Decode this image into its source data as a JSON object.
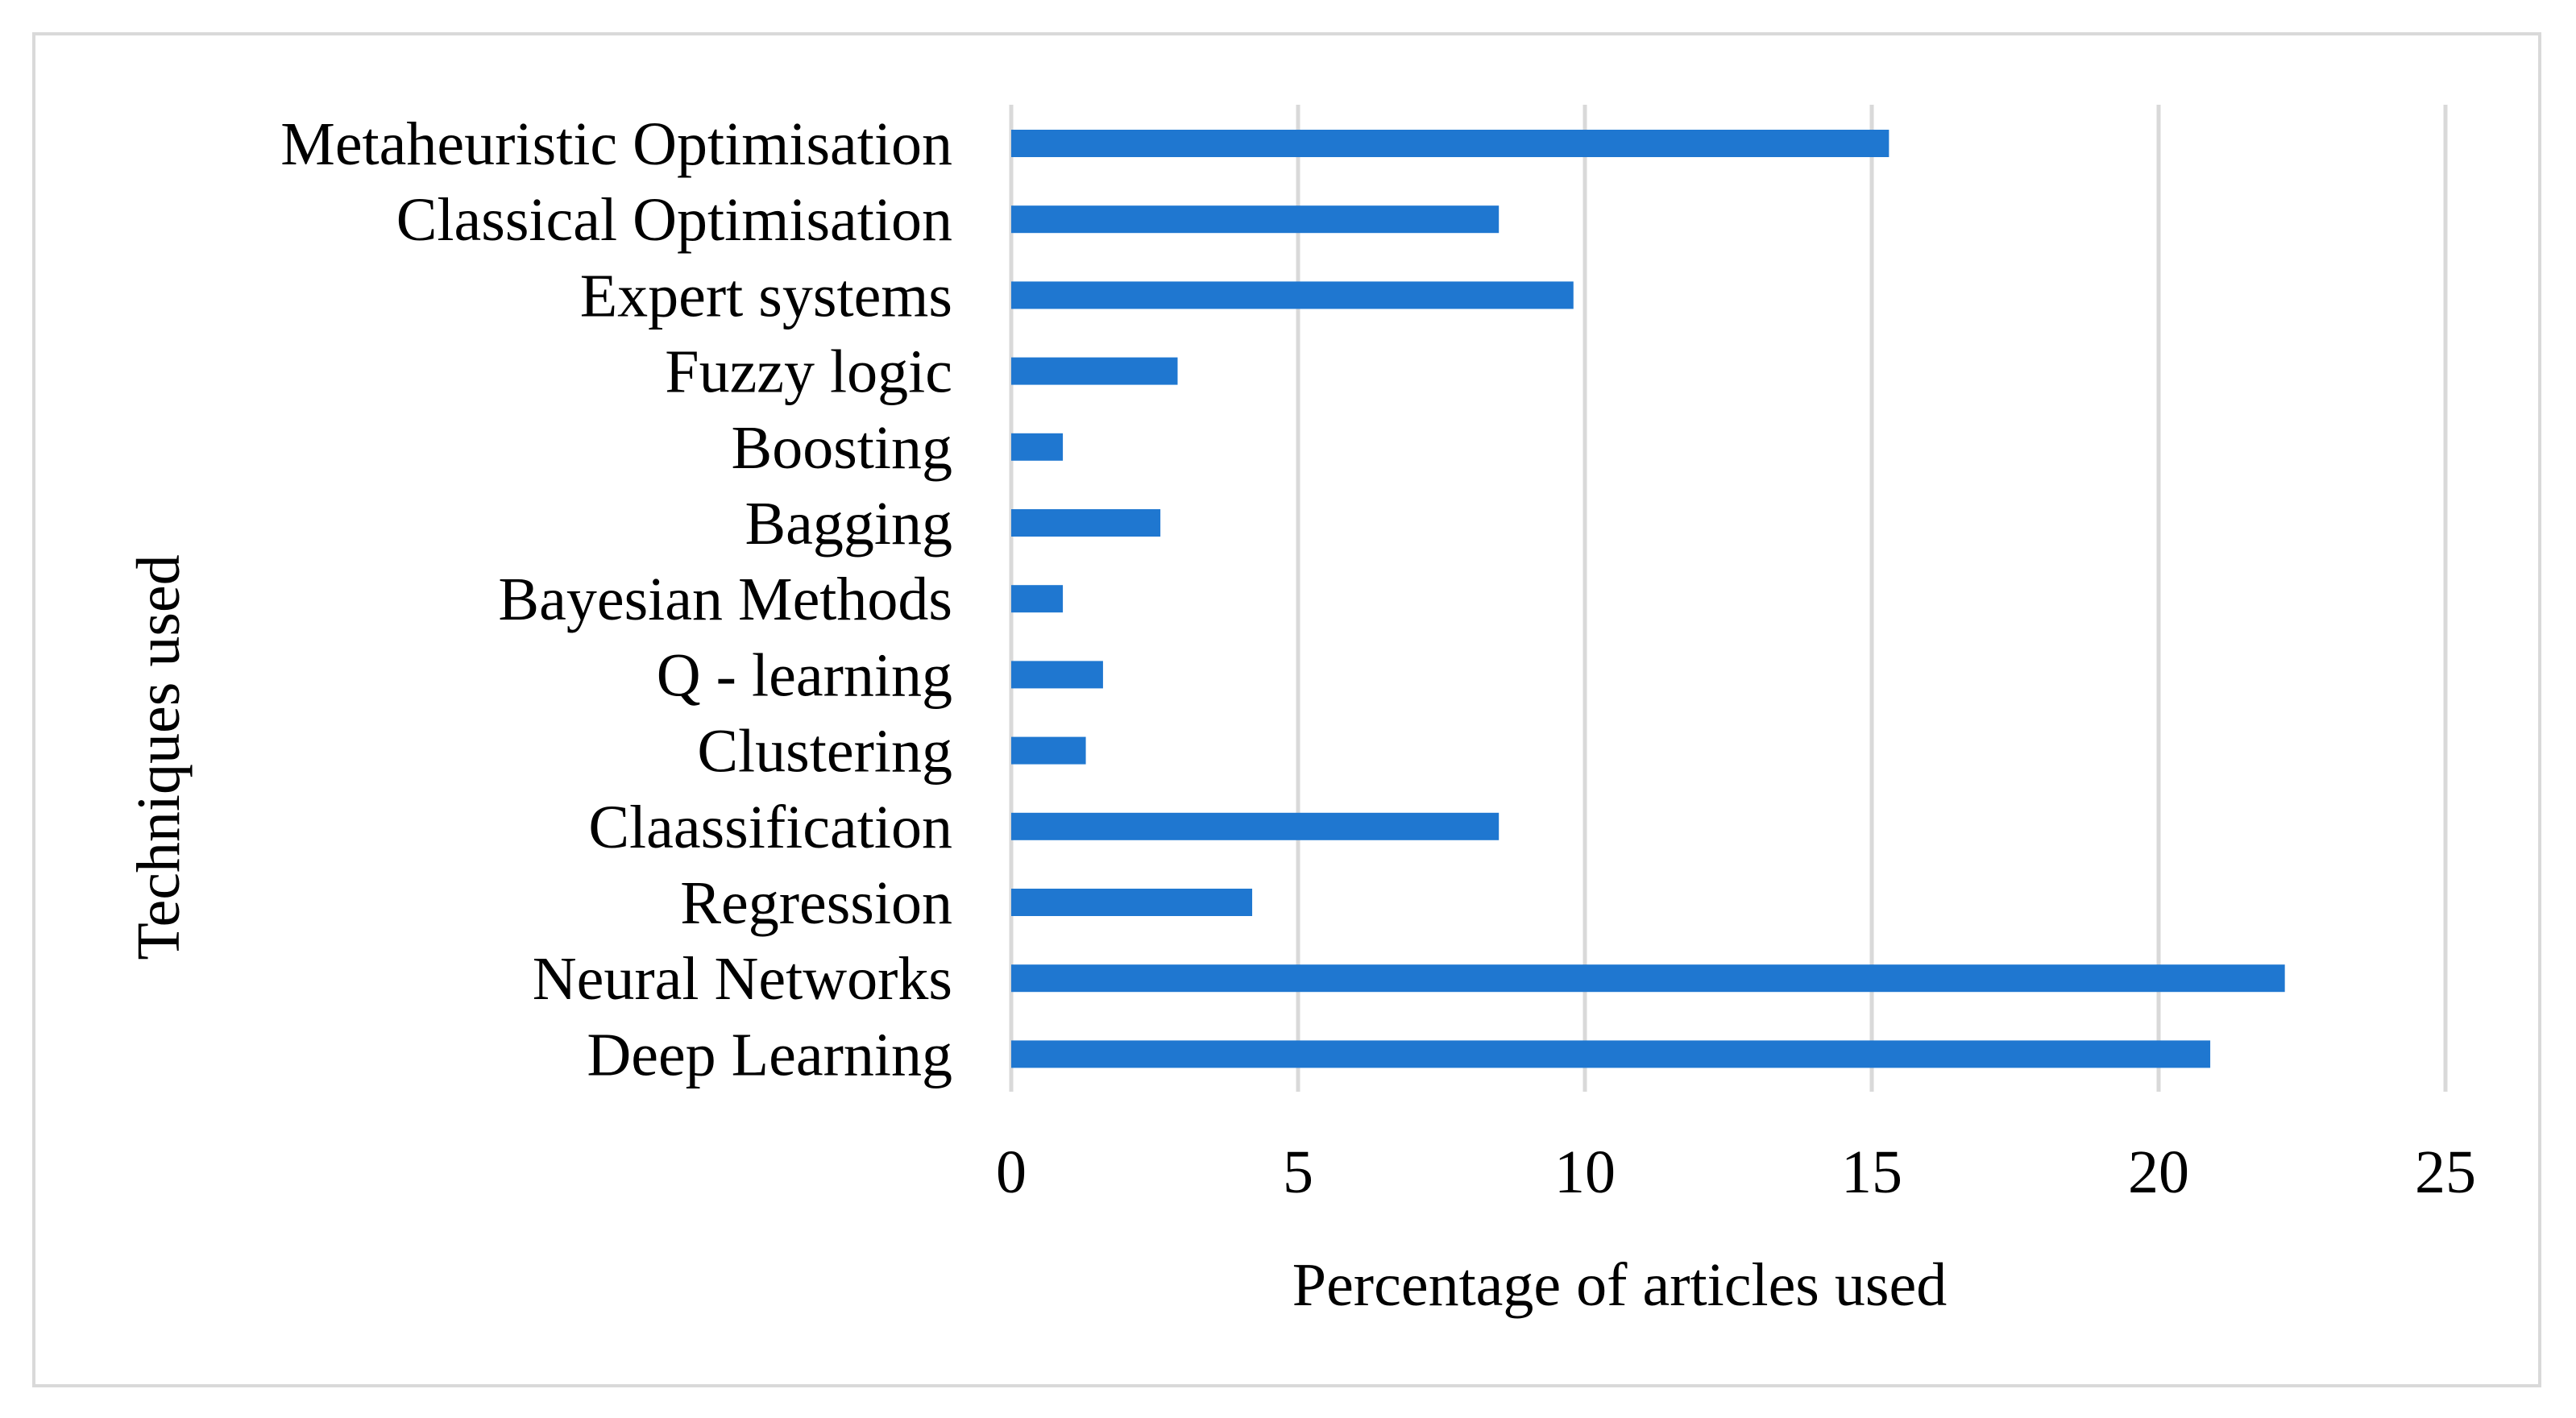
{
  "chart_data": {
    "type": "bar",
    "orientation": "horizontal",
    "title": "",
    "xlabel": "Percentage of articles used",
    "ylabel": "Techniques used",
    "xlim": [
      0,
      25
    ],
    "xticks": [
      0,
      5,
      10,
      15,
      20,
      25
    ],
    "grid": true,
    "legend": "none",
    "categories": [
      "Metaheuristic Optimisation",
      "Classical Optimisation",
      "Expert systems",
      "Fuzzy logic",
      "Boosting",
      "Bagging",
      "Bayesian Methods",
      "Q - learning",
      "Clustering",
      "Claassification",
      "Regression",
      "Neural Networks",
      "Deep Learning"
    ],
    "values": [
      15.3,
      8.5,
      9.8,
      2.9,
      0.9,
      2.6,
      0.9,
      1.6,
      1.3,
      8.5,
      4.2,
      22.2,
      20.9
    ],
    "bar_color": "#1f77d0",
    "grid_color": "#d9d9d9"
  }
}
